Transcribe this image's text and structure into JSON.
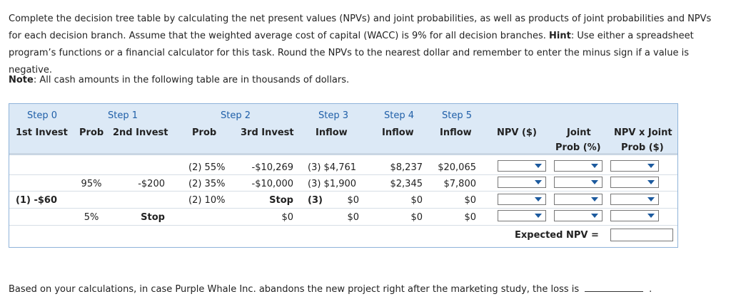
{
  "intro": {
    "t1": "Complete the decision tree table by calculating the net present values (NPVs) and joint probabilities, as well as products of joint probabilities and NPVs for each decision branch. Assume that the weighted average cost of capital (WACC) is 9% for all decision branches. ",
    "hint_label": "Hint",
    "t2": ": Use either a spreadsheet program’s functions or a financial calculator for this task. Round the NPVs to the nearest dollar and remember to enter the minus sign if a value is negative."
  },
  "note": {
    "label": "Note",
    "text": ": All cash amounts in the following table are in thousands of dollars."
  },
  "table": {
    "steps": {
      "s0": "Step 0",
      "s1": "Step 1",
      "s2": "Step 2",
      "s3": "Step 3",
      "s4": "Step 4",
      "s5": "Step 5"
    },
    "cols": {
      "first_invest": "1st Invest",
      "prob1": "Prob",
      "second_invest": "2nd Invest",
      "prob2": "Prob",
      "third_invest": "3rd Invest",
      "inflow3": "Inflow",
      "inflow4": "Inflow",
      "inflow5": "Inflow",
      "npv": "NPV ($)",
      "joint1": "Joint",
      "joint2": "Prob (%)",
      "npvj1": "NPV x Joint",
      "npvj2": "Prob ($)"
    },
    "rows": [
      {
        "s0": "",
        "p1": "",
        "s1": "",
        "p2": "(2) 55%",
        "i3": "-$10,269",
        "f3": "(3) $4,761",
        "f4": "$8,237",
        "f5": "$20,065"
      },
      {
        "s0": "",
        "p1": "95%",
        "s1": "-$200",
        "p2": "(2) 35%",
        "i3": "-$10,000",
        "f3": "(3) $1,900",
        "f4": "$2,345",
        "f5": "$7,800"
      },
      {
        "s0": "(1) -$60",
        "p1": "",
        "s1": "",
        "p2": "(2) 10%",
        "i3": "Stop",
        "f3a": "(3)",
        "f3b": "$0",
        "f4": "$0",
        "f5": "$0"
      },
      {
        "s0": "",
        "p1": "5%",
        "s1": "Stop",
        "p2": "",
        "i3": "$0",
        "f3": "$0",
        "f4": "$0",
        "f5": "$0"
      }
    ],
    "expected_label": "Expected NPV ="
  },
  "footer": {
    "text": "Based on your calculations, in case Purple Whale Inc. abandons the new project right after the marketing study, the loss is",
    "end": "."
  }
}
